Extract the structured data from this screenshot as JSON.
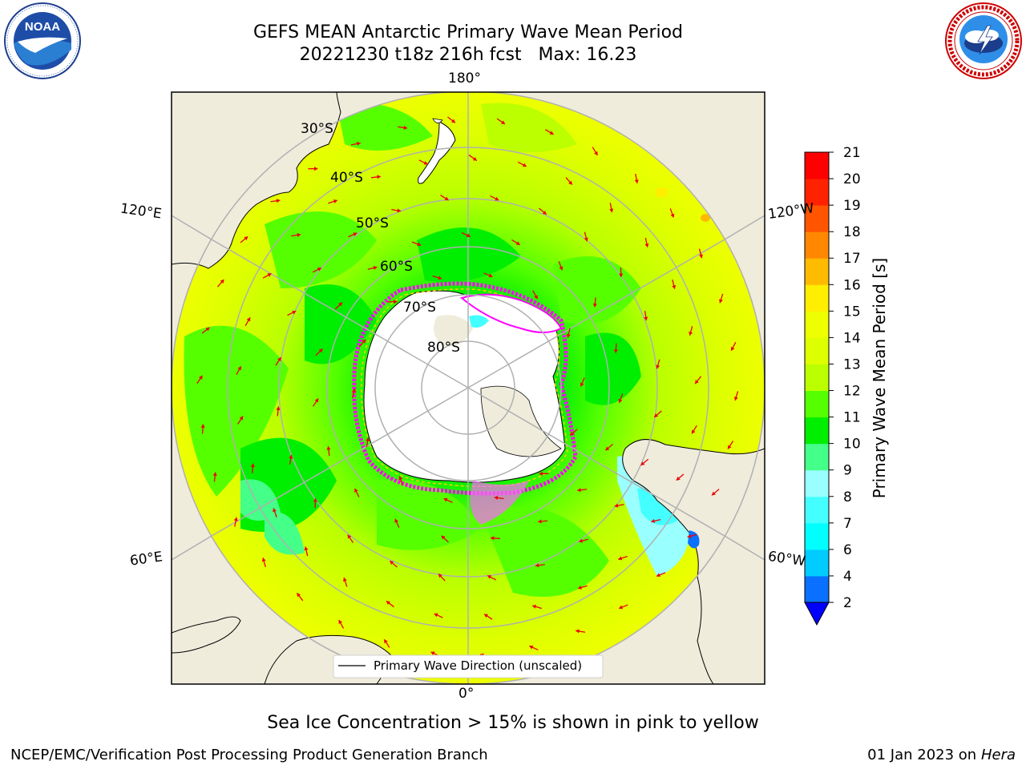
{
  "title": {
    "line1": "GEFS MEAN Antarctic Primary Wave Mean Period",
    "line2": "20221230 t18z 216h fcst   Max: 16.23"
  },
  "logos": {
    "left": {
      "name": "NOAA",
      "text": "NOAA"
    },
    "right": {
      "name": "NATIONAL WEATHER SERVICE"
    }
  },
  "map": {
    "projection": "south-polar-stereographic",
    "longitude_labels": {
      "top": "180°",
      "bottom": "0°",
      "left_upper": "120°E",
      "left_lower": "60°E",
      "right_upper": "120°W",
      "right_lower": "60°W"
    },
    "latitude_labels": [
      "30°S",
      "40°S",
      "50°S",
      "60°S",
      "70°S",
      "80°S"
    ],
    "legend": {
      "label": "Primary Wave Direction (unscaled)"
    },
    "colors": {
      "land": "#efecdc",
      "arrow": "#ee0000",
      "sea_ice_low": "#ff00ff",
      "sea_ice_high": "#ffff00"
    }
  },
  "colorbar": {
    "label": "Primary Wave Mean Period [s]",
    "unit": "s",
    "ticks": [
      "2",
      "4",
      "6",
      "7",
      "8",
      "9",
      "10",
      "11",
      "12",
      "13",
      "14",
      "15",
      "16",
      "17",
      "18",
      "19",
      "20",
      "21"
    ],
    "bins": [
      {
        "from": 2,
        "to": 4,
        "color": "#0a70ff"
      },
      {
        "from": 4,
        "to": 6,
        "color": "#00ccff"
      },
      {
        "from": 6,
        "to": 7,
        "color": "#00ffff"
      },
      {
        "from": 7,
        "to": 8,
        "color": "#44ffff"
      },
      {
        "from": 8,
        "to": 9,
        "color": "#99ffff"
      },
      {
        "from": 9,
        "to": 10,
        "color": "#44ff88"
      },
      {
        "from": 10,
        "to": 11,
        "color": "#00ee00"
      },
      {
        "from": 11,
        "to": 12,
        "color": "#55ff00"
      },
      {
        "from": 12,
        "to": 13,
        "color": "#bbff00"
      },
      {
        "from": 13,
        "to": 14,
        "color": "#ddff00"
      },
      {
        "from": 14,
        "to": 15,
        "color": "#eeff00"
      },
      {
        "from": 15,
        "to": 16,
        "color": "#ffee00"
      },
      {
        "from": 16,
        "to": 17,
        "color": "#ffbb00"
      },
      {
        "from": 17,
        "to": 18,
        "color": "#ff8800"
      },
      {
        "from": 18,
        "to": 19,
        "color": "#ff5500"
      },
      {
        "from": 19,
        "to": 20,
        "color": "#ff2200"
      },
      {
        "from": 20,
        "to": 21,
        "color": "#ff0000"
      }
    ],
    "extend_color": "#0000ff"
  },
  "caption": "Sea Ice Concentration > 15% is shown in pink to yellow",
  "footer": {
    "left": "NCEP/EMC/Verification Post Processing Product Generation Branch",
    "right_date": "01 Jan 2023 on",
    "right_machine": "Hera"
  }
}
